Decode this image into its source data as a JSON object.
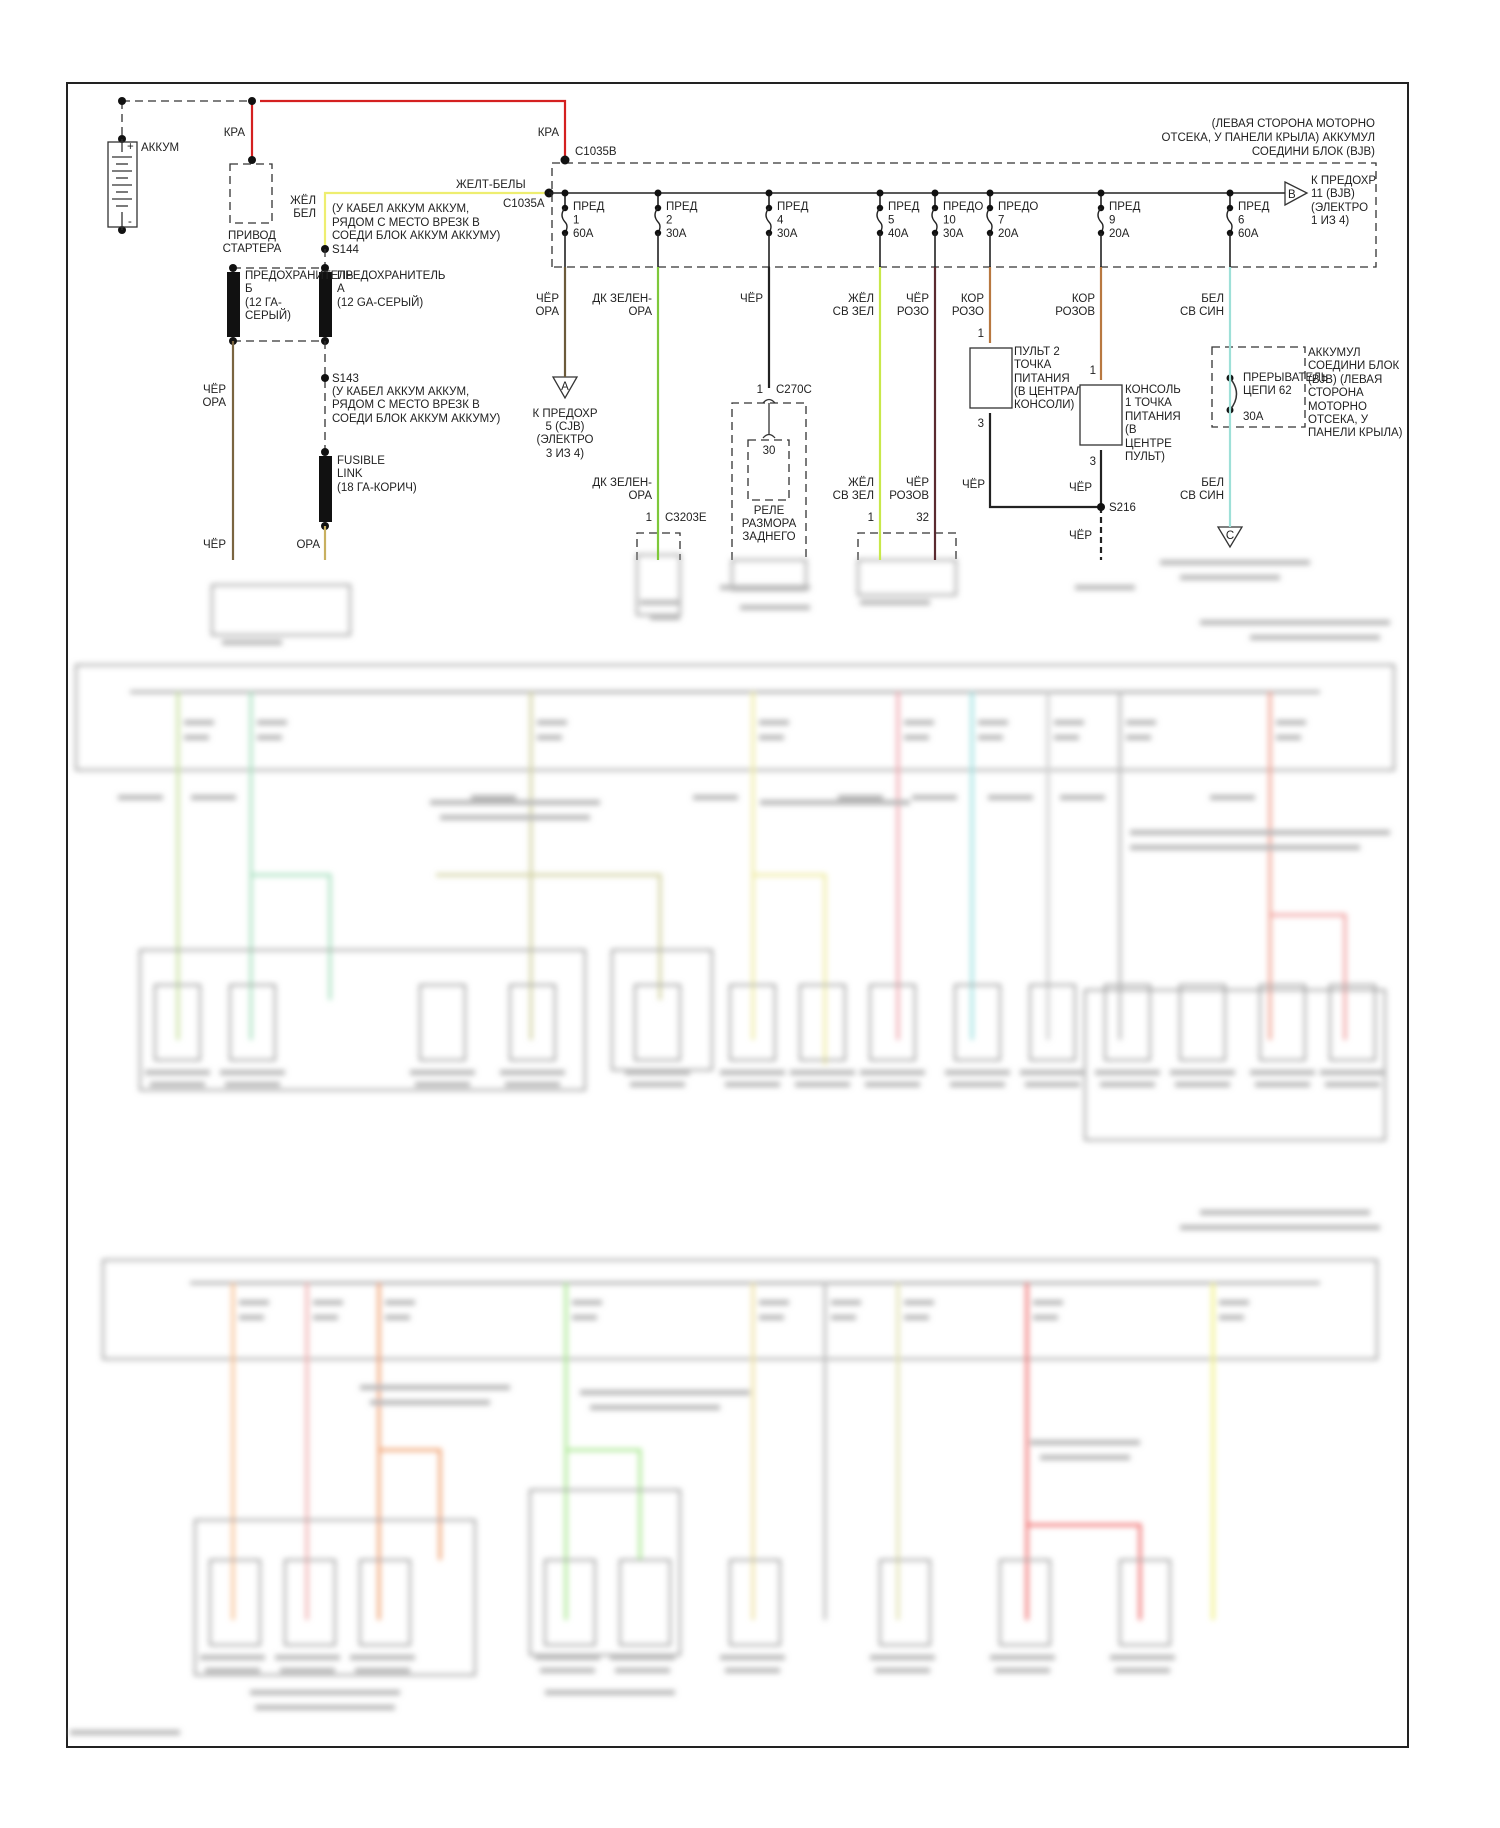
{
  "battery": {
    "label": "АККУМ",
    "plus": "+",
    "minus": "-"
  },
  "starter": {
    "wire": "КРА",
    "label": [
      "ПРИВОД",
      "СТАРТЕРА"
    ]
  },
  "bjb_feed": {
    "wire": "КРА",
    "connector": "C1035B"
  },
  "yellow_feed": {
    "wire_a": [
      "ЖЁЛ",
      "БЕЛ"
    ],
    "wire_b": "ЖЕЛТ-БЕЛЫ",
    "connector": "C1035A",
    "splice": "S144",
    "splice_note": [
      "(У КАБЕЛ АККУМ АККУМ,",
      "РЯДОМ С МЕСТО ВРЕЗК В",
      "СОЕДИ БЛОК АККУМ АККУМУ)"
    ]
  },
  "fuse_b": {
    "label": [
      "ПРЕДОХРАНИТЕЛЬ",
      "Б",
      "(12 ГА-",
      "СЕРЫЙ)"
    ],
    "wire": [
      "ЧЁР",
      "ОРА"
    ],
    "wire_bottom": "ЧЁР"
  },
  "fuse_a": {
    "label": [
      "ПРЕДОХРАНИТЕЛЬ",
      "А",
      "(12 GA-СЕРЫЙ)"
    ]
  },
  "s143": {
    "splice": "S143",
    "note": [
      "(У КАБЕЛ АККУМ АККУМ,",
      "РЯДОМ С МЕСТО ВРЕЗК В",
      "СОЕДИ БЛОК АККУМ АККУМУ)"
    ]
  },
  "fusible_link": {
    "label": [
      "FUSIBLE",
      "LINK",
      "(18 ГА-КОРИЧ)"
    ],
    "wire_bottom": "ОРА"
  },
  "bjb": {
    "location": [
      "(ЛЕВАЯ СТОРОНА МОТОРНО",
      "ОТСЕКА, У ПАНЕЛИ КРЫЛА) АККУМУЛ",
      "СОЕДИНИ БЛОК (BJB)"
    ],
    "fuses": [
      {
        "name": "ПРЕД",
        "num": "1",
        "amps": "60A",
        "wire": [
          "ЧЁР",
          "ОРА"
        ],
        "color": "#6b5a3a"
      },
      {
        "name": "ПРЕД",
        "num": "2",
        "amps": "30A",
        "wire": [
          "ДК ЗЕЛЕН-",
          "ОРА"
        ],
        "color": "#7ec83a"
      },
      {
        "name": "ПРЕД",
        "num": "4",
        "amps": "30A",
        "wire": [
          "ЧЁР"
        ],
        "color": "#222222"
      },
      {
        "name": "ПРЕД",
        "num": "5",
        "amps": "40A",
        "wire": [
          "ЖЁЛ",
          "СВ ЗЕЛ"
        ],
        "color": "#c8e84a"
      },
      {
        "name": "ПРЕДО",
        "num": "10",
        "amps": "30A",
        "wire": [
          "ЧЁР",
          "РОЗО"
        ],
        "color": "#5a2a30"
      },
      {
        "name": "ПРЕДО",
        "num": "7",
        "amps": "20A",
        "wire": [
          "КОР",
          "РОЗО"
        ],
        "color": "#b87840"
      },
      {
        "name": "ПРЕД",
        "num": "9",
        "amps": "20A",
        "wire": [
          "КОР",
          "РОЗОВ"
        ],
        "color": "#b87840"
      },
      {
        "name": "ПРЕД",
        "num": "6",
        "amps": "60A",
        "wire": [
          "БЕЛ",
          "СВ СИН"
        ],
        "color": "#9ee0d8"
      }
    ],
    "to_b": {
      "tag": "B",
      "label": [
        "К ПРЕДОХР",
        "11 (BJB)",
        "(ЭЛЕКТРО",
        "1 ИЗ 4)"
      ]
    }
  },
  "circuits": {
    "to_a": {
      "tag": "A",
      "label": [
        "К ПРЕДОХР",
        "5 (CJB)",
        "(ЭЛЕКТРО",
        "3 ИЗ 4)"
      ]
    },
    "c3203e": {
      "wire": [
        "ДК ЗЕЛЕН-",
        "ОРА"
      ],
      "pin": "1",
      "connector": "C3203E"
    },
    "relay": {
      "pin": "1",
      "connector": "C270C",
      "terminal": "30",
      "label": [
        "РЕЛЕ",
        "РАЗМОРА",
        "ЗАДНЕГО"
      ]
    },
    "fuse5_bottom": {
      "wire": [
        "ЖЁЛ",
        "СВ ЗЕЛ"
      ],
      "pin": "1"
    },
    "fuse10_bottom": {
      "wire": [
        "ЧЁР",
        "РОЗОВ"
      ],
      "pin": "32"
    },
    "power_point_2": {
      "pin_in": "1",
      "pin_out": "3",
      "label": [
        "ПУЛЬТ 2",
        "ТОЧКА",
        "ПИТАНИЯ",
        "(В ЦЕНТРАЛЬН",
        "КОНСОЛИ)"
      ],
      "ground_wire": "ЧЁР"
    },
    "power_point_1": {
      "pin_in": "1",
      "pin_out": "3",
      "label": [
        "КОНСОЛЬ",
        "1 ТОЧКА",
        "ПИТАНИЯ",
        "(В",
        "ЦЕНТРЕ",
        "ПУЛЬТ)"
      ],
      "ground_wire": "ЧЁР"
    },
    "s216": {
      "splice": "S216",
      "wire_below": "ЧЁР"
    },
    "breaker": {
      "label": [
        "ПРЕРЫВАТЕЛЬ",
        "ЦЕПИ 62"
      ],
      "amps": "30A",
      "location": [
        "АККУМУЛ",
        "СОЕДИНИ БЛОК",
        "(BJB) (ЛЕВАЯ",
        "СТОРОНА",
        "МОТОРНО",
        "ОТСЕКА, У",
        "ПАНЕЛИ КРЫЛА)"
      ],
      "wire_bottom": [
        "БЕЛ",
        "СВ СИН"
      ],
      "tag": "C"
    }
  },
  "colors": {
    "red": "#d42020",
    "yellow": "#eeee70",
    "fuse_b_wire": "#7a6540",
    "fusible_wire": "#c8b060"
  }
}
